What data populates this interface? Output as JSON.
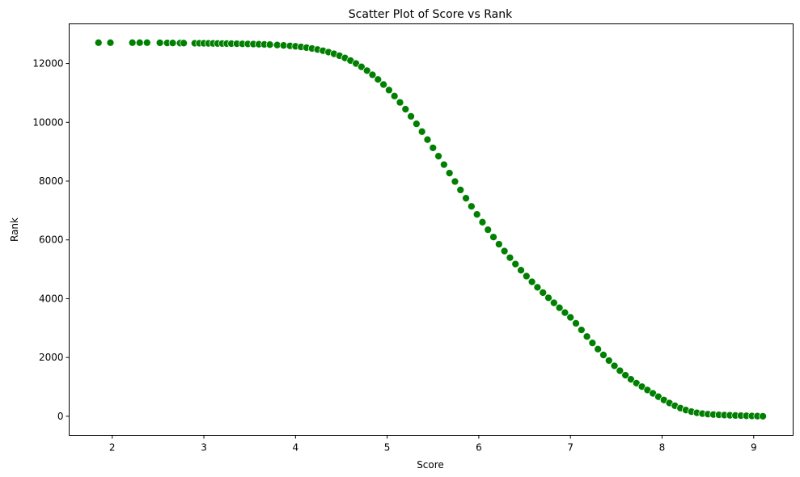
{
  "chart_data": {
    "type": "scatter",
    "title": "Scatter Plot of Score vs Rank",
    "xlabel": "Score",
    "ylabel": "Rank",
    "xlim": [
      1.53,
      9.43
    ],
    "ylim": [
      -650,
      13350
    ],
    "xticks": [
      2,
      3,
      4,
      5,
      6,
      7,
      8,
      9
    ],
    "yticks": [
      0,
      2000,
      4000,
      6000,
      8000,
      10000,
      12000
    ],
    "grid": false,
    "marker_color": "#008000",
    "marker_edge_color": "#ffffff",
    "x": [
      1.85,
      1.98,
      2.22,
      2.3,
      2.38,
      2.52,
      2.6,
      2.66,
      2.74,
      2.78,
      2.9,
      2.95,
      3.0,
      3.05,
      3.1,
      3.15,
      3.2,
      3.25,
      3.3,
      3.36,
      3.42,
      3.48,
      3.54,
      3.6,
      3.66,
      3.72,
      3.8,
      3.87,
      3.94,
      4.0,
      4.06,
      4.12,
      4.18,
      4.24,
      4.3,
      4.36,
      4.42,
      4.48,
      4.54,
      4.6,
      4.66,
      4.72,
      4.78,
      4.84,
      4.9,
      4.96,
      5.02,
      5.08,
      5.14,
      5.2,
      5.26,
      5.32,
      5.38,
      5.44,
      5.5,
      5.56,
      5.62,
      5.68,
      5.74,
      5.8,
      5.86,
      5.92,
      5.98,
      6.04,
      6.1,
      6.16,
      6.22,
      6.28,
      6.34,
      6.4,
      6.46,
      6.52,
      6.58,
      6.64,
      6.7,
      6.76,
      6.82,
      6.88,
      6.94,
      7.0,
      7.06,
      7.12,
      7.18,
      7.24,
      7.3,
      7.36,
      7.42,
      7.48,
      7.54,
      7.6,
      7.66,
      7.72,
      7.78,
      7.84,
      7.9,
      7.96,
      8.02,
      8.08,
      8.14,
      8.2,
      8.26,
      8.32,
      8.38,
      8.44,
      8.5,
      8.56,
      8.62,
      8.68,
      8.74,
      8.8,
      8.86,
      8.92,
      8.98,
      9.04,
      9.1
    ],
    "y": [
      12710,
      12710,
      12710,
      12710,
      12710,
      12705,
      12700,
      12700,
      12695,
      12695,
      12690,
      12690,
      12688,
      12686,
      12684,
      12682,
      12680,
      12678,
      12676,
      12673,
      12670,
      12666,
      12662,
      12657,
      12651,
      12643,
      12630,
      12617,
      12601,
      12586,
      12565,
      12541,
      12512,
      12477,
      12436,
      12388,
      12331,
      12265,
      12189,
      12101,
      12001,
      11887,
      11759,
      11617,
      11459,
      11286,
      11098,
      10895,
      10678,
      10447,
      10204,
      9949,
      9684,
      9411,
      9132,
      8848,
      8561,
      8273,
      7986,
      7700,
      7418,
      7141,
      6869,
      6604,
      6346,
      6096,
      5854,
      5620,
      5395,
      5178,
      4969,
      4768,
      4574,
      4387,
      4206,
      4030,
      3859,
      3692,
      3527,
      3364,
      3162,
      2936,
      2713,
      2495,
      2285,
      2085,
      1895,
      1716,
      1550,
      1396,
      1256,
      1127,
      1008,
      893,
      779,
      665,
      554,
      451,
      358,
      278,
      211,
      157,
      117,
      90,
      72,
      59,
      49,
      40,
      33,
      27,
      21,
      15,
      10,
      5,
      0
    ]
  }
}
